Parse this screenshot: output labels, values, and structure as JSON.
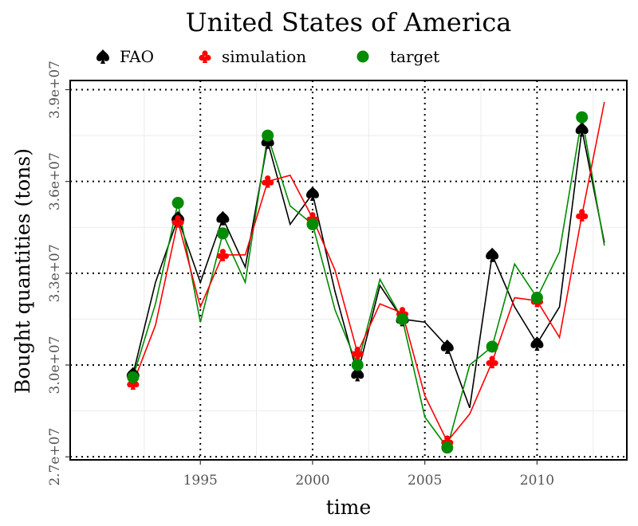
{
  "chart_data": {
    "type": "line",
    "title": "United States of America",
    "xlabel": "time",
    "ylabel": "Bought quantities (tons)",
    "xlim": [
      1989.2,
      2014.0
    ],
    "ylim": [
      26900000,
      39300000
    ],
    "x_ticks": [
      1995,
      2000,
      2005,
      2010
    ],
    "x_tick_labels": [
      "1995",
      "2000",
      "2005",
      "2010"
    ],
    "y_ticks": [
      27000000,
      30000000,
      33000000,
      36000000,
      39000000
    ],
    "y_tick_labels": [
      "2.7e+07",
      "3.0e+07",
      "3.3e+07",
      "3.6e+07",
      "3.9e+07"
    ],
    "dotted_gridlines_x": [
      1995,
      2000,
      2005,
      2010
    ],
    "dotted_gridlines_y": [
      27000000,
      30000000,
      33000000,
      36000000,
      39000000
    ],
    "legend_position": "top",
    "series": [
      {
        "name": "FAO",
        "color": "#000000",
        "marker": "spade",
        "x": [
          1992,
          1993,
          1994,
          1995,
          1996,
          1997,
          1998,
          1999,
          2000,
          2001,
          2002,
          2003,
          2004,
          2005,
          2006,
          2007,
          2008,
          2009,
          2010,
          2011,
          2012,
          2013
        ],
        "values": [
          29700000,
          32700000,
          34800000,
          32700000,
          34800000,
          33200000,
          37300000,
          34600000,
          35600000,
          32400000,
          29700000,
          32600000,
          31500000,
          31400000,
          30600000,
          28600000,
          33600000,
          31900000,
          30700000,
          31900000,
          37700000,
          34000000
        ],
        "marker_x": [
          1992,
          1994,
          1996,
          1998,
          2000,
          2002,
          2004,
          2006,
          2008,
          2010,
          2012
        ],
        "marker_values": [
          29700000,
          34800000,
          34800000,
          37300000,
          35600000,
          29700000,
          31500000,
          30600000,
          33600000,
          30700000,
          37700000
        ]
      },
      {
        "name": "simulation",
        "color": "#ff0000",
        "marker": "club",
        "x": [
          1992,
          1993,
          1994,
          1995,
          1996,
          1997,
          1998,
          1999,
          2000,
          2001,
          2002,
          2003,
          2004,
          2005,
          2006,
          2007,
          2008,
          2009,
          2010,
          2011,
          2012,
          2013
        ],
        "values": [
          29400000,
          31300000,
          34700000,
          31900000,
          33600000,
          33600000,
          36000000,
          36200000,
          34800000,
          33100000,
          30400000,
          32000000,
          31700000,
          29000000,
          27500000,
          28400000,
          30100000,
          32200000,
          32100000,
          30900000,
          34900000,
          38600000
        ],
        "marker_x": [
          1992,
          1994,
          1996,
          1998,
          2000,
          2002,
          2004,
          2006,
          2008,
          2010,
          2012
        ],
        "marker_values": [
          29400000,
          34700000,
          33600000,
          36000000,
          34800000,
          30400000,
          31700000,
          27500000,
          30100000,
          32100000,
          34900000
        ]
      },
      {
        "name": "target",
        "color": "#008b00",
        "marker": "circle",
        "x": [
          1992,
          1993,
          1994,
          1995,
          1996,
          1997,
          1998,
          1999,
          2000,
          2001,
          2002,
          2003,
          2004,
          2005,
          2006,
          2007,
          2008,
          2009,
          2010,
          2011,
          2012,
          2013
        ],
        "values": [
          29600000,
          32000000,
          35300000,
          31400000,
          34300000,
          32700000,
          37500000,
          35200000,
          34600000,
          31800000,
          30000000,
          32800000,
          31500000,
          28300000,
          27300000,
          30000000,
          30600000,
          33300000,
          32200000,
          33700000,
          38100000,
          33900000
        ],
        "marker_x": [
          1992,
          1994,
          1996,
          1998,
          2000,
          2002,
          2004,
          2006,
          2008,
          2010,
          2012
        ],
        "marker_values": [
          29600000,
          35300000,
          34300000,
          37500000,
          34600000,
          30000000,
          31500000,
          27300000,
          30600000,
          32200000,
          38100000
        ]
      }
    ]
  }
}
